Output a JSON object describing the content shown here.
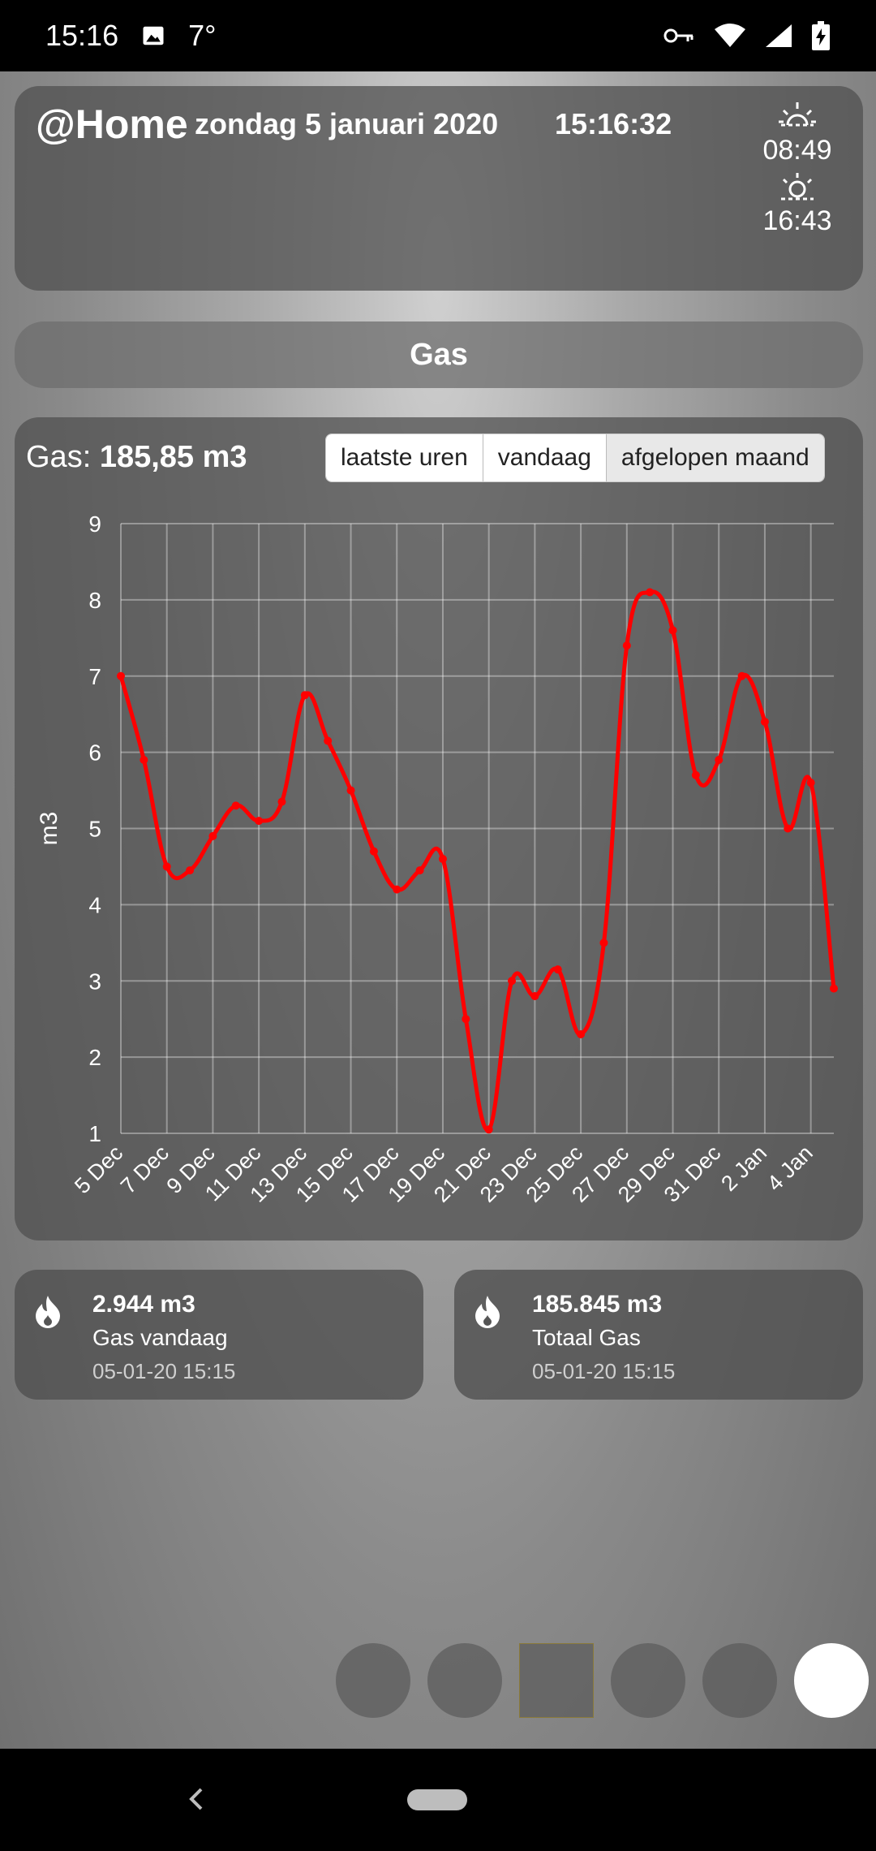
{
  "status_bar": {
    "time": "15:16",
    "temperature": "7°",
    "icons": [
      "image-icon",
      "vpn-key-icon",
      "wifi-icon",
      "cell-signal-icon",
      "battery-charging-icon"
    ]
  },
  "header": {
    "title": "@Home",
    "date": "zondag 5 januari 2020",
    "clock": "15:16:32",
    "sunrise": "08:49",
    "sunset": "16:43"
  },
  "section_title": "Gas",
  "chart_panel": {
    "label_prefix": "Gas:",
    "label_value": "185,85 m3",
    "tabs": [
      "laatste uren",
      "vandaag",
      "afgelopen maand"
    ],
    "active_tab": "afgelopen maand"
  },
  "chart_data": {
    "type": "line",
    "ylabel": "m3",
    "ylim": [
      1,
      9
    ],
    "yticks": [
      1,
      2,
      3,
      4,
      5,
      6,
      7,
      8,
      9
    ],
    "x_tick_labels": [
      "5 Dec",
      "7 Dec",
      "9 Dec",
      "11 Dec",
      "13 Dec",
      "15 Dec",
      "17 Dec",
      "19 Dec",
      "21 Dec",
      "23 Dec",
      "25 Dec",
      "27 Dec",
      "29 Dec",
      "31 Dec",
      "2 Jan",
      "4 Jan"
    ],
    "x": [
      "5 Dec",
      "6 Dec",
      "7 Dec",
      "8 Dec",
      "9 Dec",
      "10 Dec",
      "11 Dec",
      "12 Dec",
      "13 Dec",
      "14 Dec",
      "15 Dec",
      "16 Dec",
      "17 Dec",
      "18 Dec",
      "19 Dec",
      "20 Dec",
      "21 Dec",
      "22 Dec",
      "23 Dec",
      "24 Dec",
      "25 Dec",
      "26 Dec",
      "27 Dec",
      "28 Dec",
      "29 Dec",
      "30 Dec",
      "31 Dec",
      "1 Jan",
      "2 Jan",
      "3 Jan",
      "4 Jan",
      "5 Jan"
    ],
    "series": [
      {
        "color": "#ff0000",
        "values": [
          7.0,
          5.9,
          4.5,
          4.45,
          4.9,
          5.3,
          5.1,
          5.35,
          6.75,
          6.15,
          5.5,
          4.7,
          4.2,
          4.45,
          4.6,
          2.5,
          1.05,
          3.0,
          2.8,
          3.15,
          2.3,
          3.5,
          7.4,
          8.1,
          7.6,
          5.7,
          5.9,
          7.0,
          6.4,
          5.0,
          5.6,
          2.9
        ]
      }
    ],
    "grid": true
  },
  "info_cards": [
    {
      "icon": "flame-icon",
      "value": "2.944 m3",
      "label": "Gas vandaag",
      "timestamp": "05-01-20 15:15"
    },
    {
      "icon": "flame-icon",
      "value": "185.845 m3",
      "label": "Totaal Gas",
      "timestamp": "05-01-20 15:15"
    }
  ],
  "page_dots": {
    "count": 6,
    "selected_index": 2,
    "active_index": 5
  },
  "nav_bar": {
    "icons": [
      "back-icon",
      "home-pill-icon"
    ]
  }
}
